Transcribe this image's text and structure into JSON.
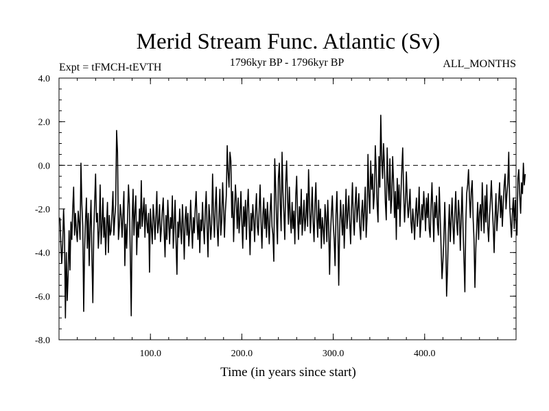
{
  "chart_data": {
    "type": "line",
    "title": "Merid Stream Func. Atlantic (Sv)",
    "subtitle_left": "Expt = tFMCH-tEVTH",
    "subtitle_center": "1796kyr BP - 1796kyr BP",
    "subtitle_right": "ALL_MONTHS",
    "xlabel": "Time (in years since start)",
    "ylabel": "",
    "xlim": [
      0,
      500
    ],
    "ylim": [
      -8,
      4
    ],
    "xticks": [
      100,
      200,
      300,
      400
    ],
    "xtick_labels": [
      "100.0",
      "200.0",
      "300.0",
      "400.0"
    ],
    "yticks": [
      -8,
      -6,
      -4,
      -2,
      0,
      2,
      4
    ],
    "ytick_labels": [
      "-8.0",
      "-6.0",
      "-4.0",
      "-2.0",
      "0.0",
      "2.0",
      "4.0"
    ],
    "reference_line": 0,
    "grid": false,
    "x_start": 1,
    "x_step": 1,
    "series": [
      {
        "name": "Merid Stream Func. Atlantic",
        "values": [
          -2.4,
          -3.6,
          -4.5,
          -3.6,
          -2.0,
          -3.2,
          -7.0,
          -4.0,
          -6.2,
          -5.0,
          -3.0,
          -4.8,
          -2.6,
          -3.4,
          -2.0,
          -1.0,
          -3.2,
          -2.2,
          -3.0,
          -3.5,
          -2.1,
          -2.6,
          -3.4,
          0.1,
          -1.8,
          -2.8,
          -6.7,
          -3.8,
          -2.5,
          -1.5,
          -3.8,
          -2.2,
          -4.6,
          -2.8,
          -1.6,
          -4.2,
          -6.3,
          -3.1,
          -1.7,
          -0.4,
          -2.6,
          -2.2,
          -3.8,
          -3.0,
          -0.9,
          -3.6,
          -2.8,
          -1.5,
          -3.3,
          -2.4,
          -4.1,
          -2.8,
          -1.7,
          -4.0,
          -2.3,
          -3.2,
          -3.0,
          -2.2,
          -1.2,
          -3.2,
          -2.4,
          -1.8,
          1.6,
          0.6,
          -3.4,
          -2.8,
          -1.8,
          -2.3,
          -3.3,
          -2.2,
          -1.2,
          -4.6,
          -2.7,
          -3.8,
          -2.4,
          -0.9,
          -1.8,
          -4.2,
          -6.9,
          -2.6,
          -1.1,
          -3.2,
          -2.1,
          -1.4,
          -4.1,
          -2.6,
          -3.3,
          -2.0,
          -2.9,
          -0.7,
          -2.8,
          -2.2,
          -1.5,
          -3.3,
          -1.8,
          -2.6,
          -3.1,
          -2.2,
          -4.9,
          -2.0,
          -2.8,
          -3.6,
          -1.8,
          -2.4,
          -3.4,
          -2.4,
          -1.2,
          -3.1,
          -2.6,
          -1.8,
          -3.5,
          -2.9,
          -2.1,
          -1.5,
          -3.0,
          -4.2,
          -2.3,
          -3.4,
          -1.6,
          -2.6,
          -3.6,
          -2.4,
          -2.9,
          -1.4,
          -3.8,
          -2.7,
          -1.6,
          -3.5,
          -5.0,
          -2.6,
          -3.3,
          -2.0,
          -2.9,
          -3.6,
          -1.8,
          -2.7,
          -4.3,
          -2.5,
          -1.9,
          -3.2,
          -2.2,
          -3.7,
          -2.9,
          -1.6,
          -2.8,
          -3.8,
          -2.4,
          -3.1,
          -2.0,
          -1.2,
          -2.6,
          -3.4,
          -2.2,
          -4.0,
          -2.5,
          -3.0,
          -1.7,
          -2.8,
          -3.6,
          -2.1,
          -1.2,
          -2.9,
          -4.2,
          -1.8,
          -2.4,
          -3.4,
          -2.7,
          -0.4,
          -2.2,
          -3.3,
          -1.9,
          -1.0,
          -2.8,
          -3.7,
          -2.3,
          -1.1,
          -3.2,
          -2.5,
          -0.8,
          -1.9,
          -3.3,
          -2.1,
          -1.4,
          0.9,
          -0.3,
          -1.0,
          0.6,
          0.2,
          -2.4,
          -1.2,
          -3.5,
          -2.1,
          -0.9,
          -1.7,
          -2.9,
          -1.5,
          -3.1,
          -2.3,
          -1.2,
          -2.6,
          -3.8,
          -1.9,
          -2.8,
          -1.6,
          -3.4,
          -2.0,
          -1.1,
          -2.7,
          -4.1,
          -2.2,
          -3.0,
          -1.8,
          -2.5,
          -3.5,
          -2.1,
          -1.3,
          -2.8,
          -3.2,
          -2.0,
          -0.9,
          -2.6,
          -3.8,
          -2.3,
          -1.5,
          -2.9,
          -2.0,
          -3.3,
          -1.7,
          -2.6,
          -3.6,
          -2.1,
          -1.3,
          -2.8,
          -3.2,
          -4.4,
          0.3,
          -1.0,
          -2.5,
          -3.6,
          -0.6,
          0.1,
          -1.8,
          -3.0,
          0.6,
          -1.2,
          -2.2,
          -3.4,
          -0.8,
          0.2,
          -1.5,
          -2.7,
          -1.0,
          -2.4,
          -3.1,
          -1.7,
          -2.9,
          -2.1,
          -3.6,
          -1.4,
          -0.5,
          -2.3,
          -3.4,
          -1.9,
          -2.7,
          -1.1,
          -3.2,
          -2.5,
          -1.6,
          -3.0,
          -2.4,
          -1.3,
          -2.8,
          -0.2,
          -1.7,
          -3.1,
          -2.2,
          -1.0,
          -2.6,
          -3.5,
          -1.8,
          -0.8,
          -2.4,
          -3.3,
          -1.6,
          -2.9,
          -2.0,
          -3.8,
          -2.4,
          -2.9,
          -3.6,
          -1.8,
          -2.4,
          -3.5,
          -1.6,
          -2.8,
          -5.0,
          -3.1,
          -2.2,
          -1.4,
          -2.7,
          -3.4,
          -4.6,
          -2.3,
          -1.2,
          -2.8,
          -5.5,
          -3.0,
          -1.6,
          -2.4,
          -3.2,
          -1.8,
          -3.8,
          -2.5,
          -1.1,
          -2.9,
          -2.2,
          -1.4,
          -2.6,
          -3.6,
          -2.0,
          -0.8,
          -2.4,
          -3.2,
          -1.8,
          -1.0,
          -2.6,
          -2.0,
          -1.3,
          -2.8,
          -3.4,
          -2.2,
          -1.6,
          -3.0,
          -2.1,
          -1.0,
          -3.3,
          -2.4,
          0.5,
          -1.4,
          -2.2,
          0.2,
          -1.1,
          -0.4,
          -2.0,
          -1.3,
          0.9,
          -0.2,
          -1.8,
          -2.6,
          0.4,
          -1.0,
          2.3,
          0.3,
          -0.6,
          1.0,
          0.0,
          -1.7,
          -2.5,
          0.8,
          -0.8,
          -1.6,
          0.3,
          -2.2,
          -1.5,
          0.4,
          -0.8,
          -2.4,
          -1.2,
          -3.4,
          -0.6,
          -2.0,
          -0.9,
          -2.8,
          -1.4,
          -0.2,
          0.8,
          -1.2,
          -2.6,
          -1.7,
          -0.3,
          -1.6,
          -2.4,
          -1.9,
          -1.1,
          -2.6,
          -3.1,
          -2.0,
          -2.6,
          -3.4,
          -2.2,
          -1.5,
          -2.8,
          -2.2,
          -1.0,
          -3.3,
          -2.6,
          -1.8,
          -2.5,
          -1.2,
          -2.0,
          -3.0,
          -1.5,
          -2.4,
          -1.3,
          -2.9,
          -3.3,
          -1.9,
          -0.8,
          -2.2,
          -3.5,
          -1.7,
          -2.4,
          -1.4,
          -2.7,
          -3.2,
          -1.0,
          -2.3,
          -3.8,
          -5.2,
          -4.4,
          -3.4,
          -1.7,
          -3.2,
          -6.0,
          -4.8,
          -3.0,
          -1.8,
          -3.5,
          -2.5,
          -1.5,
          -2.8,
          -3.6,
          -2.2,
          -1.2,
          -2.6,
          -3.2,
          -1.6,
          -2.3,
          -3.9,
          -2.4,
          -1.0,
          -2.9,
          -4.3,
          -5.8,
          -2.7,
          -1.3,
          -0.9,
          -0.2,
          -1.5,
          -2.4,
          -1.2,
          -0.7,
          -2.4,
          -3.4,
          -5.6,
          -3.8,
          -2.8,
          -1.7,
          -3.4,
          -2.2,
          -1.8,
          -3.0,
          -0.8,
          -2.0,
          -3.1,
          -1.4,
          -2.6,
          -0.9,
          -2.8,
          -3.5,
          -2.3,
          -1.6,
          -0.7,
          -1.9,
          -2.8,
          -4.0,
          -2.4,
          -1.3,
          -3.0,
          -2.3,
          -1.6,
          -0.8,
          -2.4,
          -1.4,
          -2.8,
          -1.8,
          -0.9,
          -0.4,
          -2.0,
          -1.3,
          -0.8,
          0.6,
          -1.8,
          -2.6,
          -3.3,
          -2.2,
          -1.5,
          -2.9,
          -1.6,
          -2.6,
          -3.2,
          -0.6,
          -0.2,
          -1.4,
          -2.2,
          -0.8,
          -1.3,
          0.1,
          -0.9,
          -0.4
        ]
      }
    ]
  }
}
